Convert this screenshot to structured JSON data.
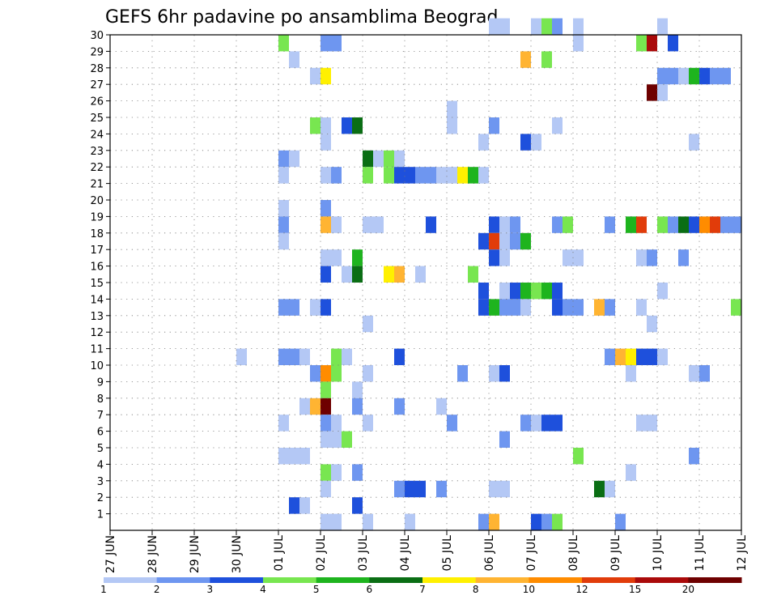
{
  "chart_data": {
    "type": "heatmap",
    "title": "GEFS 6hr padavine po ansamblima Beograd",
    "xlabel": "",
    "ylabel": "",
    "x_ticks": [
      "27 JUN",
      "28 JUN",
      "29 JUN",
      "30 JUN",
      "01 JUL",
      "02 JUL",
      "03 JUL",
      "04 JUL",
      "05 JUL",
      "06 JUL",
      "07 JUL",
      "08 JUL",
      "09 JUL",
      "10 JUL",
      "11 JUL",
      "12 JUL"
    ],
    "y_ticks": [
      1,
      2,
      3,
      4,
      5,
      6,
      7,
      8,
      9,
      10,
      11,
      12,
      13,
      14,
      15,
      16,
      17,
      18,
      19,
      20,
      21,
      22,
      23,
      24,
      25,
      26,
      27,
      28,
      29,
      30
    ],
    "x_range_days": [
      0,
      15
    ],
    "y_range": [
      0,
      30
    ],
    "time_step_hours": 6,
    "grid": true,
    "legend_position": "bottom",
    "color_levels": [
      1,
      2,
      3,
      4,
      5,
      6,
      7,
      8,
      10,
      12,
      15,
      20
    ],
    "colors": [
      "#b4c8f5",
      "#6e96f0",
      "#1e50dc",
      "#78e650",
      "#1eb41e",
      "#0a6e14",
      "#fff000",
      "#ffb432",
      "#ff8c00",
      "#e13c0a",
      "#aa0a0a",
      "#6e0000"
    ],
    "cells": [
      {
        "m": 30,
        "t": "06 JUL 00",
        "c": 1
      },
      {
        "m": 30,
        "t": "06 JUL 06",
        "c": 1
      },
      {
        "m": 30,
        "t": "07 JUL 00",
        "c": 1
      },
      {
        "m": 30,
        "t": "07 JUL 06",
        "c": 4
      },
      {
        "m": 30,
        "t": "07 JUL 12",
        "c": 2
      },
      {
        "m": 30,
        "t": "08 JUL 00",
        "c": 1
      },
      {
        "m": 30,
        "t": "10 JUL 00",
        "c": 1
      },
      {
        "m": 29,
        "t": "01 JUL 00",
        "c": 4
      },
      {
        "m": 29,
        "t": "02 JUL 00",
        "c": 2
      },
      {
        "m": 29,
        "t": "02 JUL 06",
        "c": 2
      },
      {
        "m": 29,
        "t": "08 JUL 00",
        "c": 1
      },
      {
        "m": 29,
        "t": "09 JUL 12",
        "c": 4
      },
      {
        "m": 29,
        "t": "09 JUL 18",
        "c": 11
      },
      {
        "m": 29,
        "t": "10 JUL 06",
        "c": 3
      },
      {
        "m": 28,
        "t": "01 JUL 06",
        "c": 1
      },
      {
        "m": 28,
        "t": "06 JUL 18",
        "c": 8
      },
      {
        "m": 28,
        "t": "07 JUL 06",
        "c": 4
      },
      {
        "m": 27,
        "t": "01 JUL 18",
        "c": 1
      },
      {
        "m": 27,
        "t": "02 JUL 00",
        "c": 7
      },
      {
        "m": 27,
        "t": "10 JUL 00",
        "c": 2
      },
      {
        "m": 27,
        "t": "10 JUL 06",
        "c": 2
      },
      {
        "m": 27,
        "t": "10 JUL 12",
        "c": 1
      },
      {
        "m": 27,
        "t": "10 JUL 18",
        "c": 5
      },
      {
        "m": 27,
        "t": "11 JUL 00",
        "c": 3
      },
      {
        "m": 27,
        "t": "11 JUL 06",
        "c": 2
      },
      {
        "m": 27,
        "t": "11 JUL 12",
        "c": 2
      },
      {
        "m": 26,
        "t": "09 JUL 18",
        "c": 12
      },
      {
        "m": 26,
        "t": "10 JUL 00",
        "c": 1
      },
      {
        "m": 25,
        "t": "05 JUL 00",
        "c": 1
      },
      {
        "m": 24,
        "t": "01 JUL 18",
        "c": 4
      },
      {
        "m": 24,
        "t": "02 JUL 00",
        "c": 1
      },
      {
        "m": 24,
        "t": "02 JUL 12",
        "c": 3
      },
      {
        "m": 24,
        "t": "02 JUL 18",
        "c": 6
      },
      {
        "m": 24,
        "t": "05 JUL 00",
        "c": 1
      },
      {
        "m": 24,
        "t": "06 JUL 00",
        "c": 2
      },
      {
        "m": 24,
        "t": "07 JUL 12",
        "c": 1
      },
      {
        "m": 23,
        "t": "02 JUL 00",
        "c": 1
      },
      {
        "m": 23,
        "t": "05 JUL 18",
        "c": 1
      },
      {
        "m": 23,
        "t": "06 JUL 18",
        "c": 3
      },
      {
        "m": 23,
        "t": "07 JUL 00",
        "c": 1
      },
      {
        "m": 23,
        "t": "10 JUL 18",
        "c": 1
      },
      {
        "m": 22,
        "t": "01 JUL 00",
        "c": 2
      },
      {
        "m": 22,
        "t": "01 JUL 06",
        "c": 1
      },
      {
        "m": 22,
        "t": "03 JUL 00",
        "c": 6
      },
      {
        "m": 22,
        "t": "03 JUL 06",
        "c": 1
      },
      {
        "m": 22,
        "t": "03 JUL 12",
        "c": 4
      },
      {
        "m": 22,
        "t": "03 JUL 18",
        "c": 1
      },
      {
        "m": 21,
        "t": "01 JUL 00",
        "c": 1
      },
      {
        "m": 21,
        "t": "02 JUL 00",
        "c": 1
      },
      {
        "m": 21,
        "t": "02 JUL 06",
        "c": 2
      },
      {
        "m": 21,
        "t": "03 JUL 00",
        "c": 4
      },
      {
        "m": 21,
        "t": "03 JUL 12",
        "c": 4
      },
      {
        "m": 21,
        "t": "03 JUL 18",
        "c": 3
      },
      {
        "m": 21,
        "t": "04 JUL 00",
        "c": 3
      },
      {
        "m": 21,
        "t": "04 JUL 06",
        "c": 2
      },
      {
        "m": 21,
        "t": "04 JUL 12",
        "c": 2
      },
      {
        "m": 21,
        "t": "04 JUL 18",
        "c": 1
      },
      {
        "m": 21,
        "t": "05 JUL 00",
        "c": 1
      },
      {
        "m": 21,
        "t": "05 JUL 06",
        "c": 7
      },
      {
        "m": 21,
        "t": "05 JUL 12",
        "c": 5
      },
      {
        "m": 21,
        "t": "05 JUL 18",
        "c": 1
      },
      {
        "m": 21,
        "t": "12 JUL 00",
        "c": 1
      },
      {
        "m": 19,
        "t": "01 JUL 00",
        "c": 1
      },
      {
        "m": 19,
        "t": "02 JUL 00",
        "c": 2
      },
      {
        "m": 18,
        "t": "01 JUL 00",
        "c": 2
      },
      {
        "m": 18,
        "t": "02 JUL 00",
        "c": 8
      },
      {
        "m": 18,
        "t": "02 JUL 06",
        "c": 1
      },
      {
        "m": 18,
        "t": "03 JUL 00",
        "c": 1
      },
      {
        "m": 18,
        "t": "03 JUL 06",
        "c": 1
      },
      {
        "m": 18,
        "t": "04 JUL 12",
        "c": 3
      },
      {
        "m": 18,
        "t": "06 JUL 00",
        "c": 3
      },
      {
        "m": 18,
        "t": "06 JUL 06",
        "c": 1
      },
      {
        "m": 18,
        "t": "06 JUL 12",
        "c": 2
      },
      {
        "m": 18,
        "t": "07 JUL 12",
        "c": 2
      },
      {
        "m": 18,
        "t": "07 JUL 18",
        "c": 4
      },
      {
        "m": 18,
        "t": "08 JUL 18",
        "c": 2
      },
      {
        "m": 18,
        "t": "09 JUL 06",
        "c": 5
      },
      {
        "m": 18,
        "t": "09 JUL 12",
        "c": 10
      },
      {
        "m": 18,
        "t": "10 JUL 00",
        "c": 4
      },
      {
        "m": 18,
        "t": "10 JUL 06",
        "c": 2
      },
      {
        "m": 18,
        "t": "10 JUL 12",
        "c": 6
      },
      {
        "m": 18,
        "t": "10 JUL 18",
        "c": 3
      },
      {
        "m": 18,
        "t": "11 JUL 00",
        "c": 9
      },
      {
        "m": 18,
        "t": "11 JUL 06",
        "c": 10
      },
      {
        "m": 18,
        "t": "11 JUL 12",
        "c": 2
      },
      {
        "m": 18,
        "t": "11 JUL 18",
        "c": 2
      },
      {
        "m": 17,
        "t": "01 JUL 00",
        "c": 1
      },
      {
        "m": 17,
        "t": "05 JUL 18",
        "c": 3
      },
      {
        "m": 17,
        "t": "06 JUL 00",
        "c": 10
      },
      {
        "m": 17,
        "t": "06 JUL 06",
        "c": 1
      },
      {
        "m": 17,
        "t": "06 JUL 12",
        "c": 2
      },
      {
        "m": 17,
        "t": "06 JUL 18",
        "c": 5
      },
      {
        "m": 16,
        "t": "02 JUL 00",
        "c": 1
      },
      {
        "m": 16,
        "t": "02 JUL 06",
        "c": 1
      },
      {
        "m": 16,
        "t": "02 JUL 18",
        "c": 5
      },
      {
        "m": 16,
        "t": "06 JUL 00",
        "c": 3
      },
      {
        "m": 16,
        "t": "06 JUL 06",
        "c": 1
      },
      {
        "m": 16,
        "t": "07 JUL 18",
        "c": 1
      },
      {
        "m": 16,
        "t": "08 JUL 00",
        "c": 1
      },
      {
        "m": 16,
        "t": "09 JUL 12",
        "c": 1
      },
      {
        "m": 16,
        "t": "09 JUL 18",
        "c": 2
      },
      {
        "m": 16,
        "t": "10 JUL 12",
        "c": 2
      },
      {
        "m": 15,
        "t": "02 JUL 00",
        "c": 3
      },
      {
        "m": 15,
        "t": "02 JUL 12",
        "c": 1
      },
      {
        "m": 15,
        "t": "02 JUL 18",
        "c": 6
      },
      {
        "m": 15,
        "t": "03 JUL 12",
        "c": 7
      },
      {
        "m": 15,
        "t": "03 JUL 18",
        "c": 8
      },
      {
        "m": 15,
        "t": "04 JUL 06",
        "c": 1
      },
      {
        "m": 15,
        "t": "05 JUL 12",
        "c": 4
      },
      {
        "m": 14,
        "t": "05 JUL 18",
        "c": 3
      },
      {
        "m": 14,
        "t": "06 JUL 06",
        "c": 1
      },
      {
        "m": 14,
        "t": "06 JUL 12",
        "c": 3
      },
      {
        "m": 14,
        "t": "06 JUL 18",
        "c": 5
      },
      {
        "m": 14,
        "t": "07 JUL 00",
        "c": 4
      },
      {
        "m": 14,
        "t": "07 JUL 06",
        "c": 5
      },
      {
        "m": 14,
        "t": "07 JUL 12",
        "c": 3
      },
      {
        "m": 14,
        "t": "10 JUL 00",
        "c": 1
      },
      {
        "m": 13,
        "t": "01 JUL 00",
        "c": 2
      },
      {
        "m": 13,
        "t": "01 JUL 06",
        "c": 2
      },
      {
        "m": 13,
        "t": "01 JUL 18",
        "c": 1
      },
      {
        "m": 13,
        "t": "02 JUL 00",
        "c": 3
      },
      {
        "m": 13,
        "t": "05 JUL 18",
        "c": 3
      },
      {
        "m": 13,
        "t": "06 JUL 00",
        "c": 5
      },
      {
        "m": 13,
        "t": "06 JUL 06",
        "c": 2
      },
      {
        "m": 13,
        "t": "06 JUL 12",
        "c": 2
      },
      {
        "m": 13,
        "t": "06 JUL 18",
        "c": 1
      },
      {
        "m": 13,
        "t": "07 JUL 12",
        "c": 3
      },
      {
        "m": 13,
        "t": "07 JUL 18",
        "c": 2
      },
      {
        "m": 13,
        "t": "08 JUL 00",
        "c": 2
      },
      {
        "m": 13,
        "t": "08 JUL 12",
        "c": 8
      },
      {
        "m": 13,
        "t": "08 JUL 18",
        "c": 2
      },
      {
        "m": 13,
        "t": "09 JUL 12",
        "c": 1
      },
      {
        "m": 13,
        "t": "11 JUL 18",
        "c": 4
      },
      {
        "m": 13,
        "t": "12 JUL 00",
        "c": 1
      },
      {
        "m": 12,
        "t": "03 JUL 00",
        "c": 1
      },
      {
        "m": 12,
        "t": "09 JUL 18",
        "c": 1
      },
      {
        "m": 11,
        "t": "00",
        "c": 1
      },
      {
        "m": 10,
        "t": "30 JUN 00",
        "c": 1
      },
      {
        "m": 10,
        "t": "01 JUL 00",
        "c": 2
      },
      {
        "m": 10,
        "t": "01 JUL 06",
        "c": 2
      },
      {
        "m": 10,
        "t": "01 JUL 12",
        "c": 1
      },
      {
        "m": 10,
        "t": "02 JUL 06",
        "c": 4
      },
      {
        "m": 10,
        "t": "02 JUL 12",
        "c": 1
      },
      {
        "m": 10,
        "t": "03 JUL 18",
        "c": 3
      },
      {
        "m": 10,
        "t": "08 JUL 18",
        "c": 2
      },
      {
        "m": 10,
        "t": "09 JUL 00",
        "c": 8
      },
      {
        "m": 10,
        "t": "09 JUL 06",
        "c": 7
      },
      {
        "m": 10,
        "t": "09 JUL 12",
        "c": 3
      },
      {
        "m": 10,
        "t": "09 JUL 18",
        "c": 3
      },
      {
        "m": 10,
        "t": "10 JUL 00",
        "c": 1
      },
      {
        "m": 10,
        "t": "12 JUL 00",
        "c": 1
      },
      {
        "m": 9,
        "t": "01 JUL 18",
        "c": 2
      },
      {
        "m": 9,
        "t": "02 JUL 00",
        "c": 9
      },
      {
        "m": 9,
        "t": "02 JUL 06",
        "c": 4
      },
      {
        "m": 9,
        "t": "03 JUL 00",
        "c": 1
      },
      {
        "m": 9,
        "t": "05 JUL 06",
        "c": 2
      },
      {
        "m": 9,
        "t": "06 JUL 00",
        "c": 1
      },
      {
        "m": 9,
        "t": "06 JUL 06",
        "c": 3
      },
      {
        "m": 9,
        "t": "09 JUL 06",
        "c": 1
      },
      {
        "m": 9,
        "t": "10 JUL 18",
        "c": 1
      },
      {
        "m": 9,
        "t": "11 JUL 00",
        "c": 2
      },
      {
        "m": 8,
        "t": "02 JUL 00",
        "c": 4
      },
      {
        "m": 8,
        "t": "02 JUL 18",
        "c": 1
      },
      {
        "m": 7,
        "t": "01 JUL 12",
        "c": 1
      },
      {
        "m": 7,
        "t": "01 JUL 18",
        "c": 8
      },
      {
        "m": 7,
        "t": "02 JUL 00",
        "c": 12
      },
      {
        "m": 7,
        "t": "02 JUL 18",
        "c": 2
      },
      {
        "m": 7,
        "t": "03 JUL 18",
        "c": 2
      },
      {
        "m": 7,
        "t": "04 JUL 18",
        "c": 1
      },
      {
        "m": 6,
        "t": "01 JUL 00",
        "c": 1
      },
      {
        "m": 6,
        "t": "02 JUL 00",
        "c": 2
      },
      {
        "m": 6,
        "t": "02 JUL 06",
        "c": 1
      },
      {
        "m": 6,
        "t": "03 JUL 00",
        "c": 1
      },
      {
        "m": 6,
        "t": "05 JUL 00",
        "c": 2
      },
      {
        "m": 6,
        "t": "06 JUL 18",
        "c": 2
      },
      {
        "m": 6,
        "t": "07 JUL 00",
        "c": 1
      },
      {
        "m": 6,
        "t": "07 JUL 06",
        "c": 3
      },
      {
        "m": 6,
        "t": "07 JUL 12",
        "c": 3
      },
      {
        "m": 6,
        "t": "09 JUL 12",
        "c": 1
      },
      {
        "m": 6,
        "t": "09 JUL 18",
        "c": 1
      },
      {
        "m": 5,
        "t": "02 JUL 00",
        "c": 1
      },
      {
        "m": 5,
        "t": "02 JUL 06",
        "c": 1
      },
      {
        "m": 5,
        "t": "02 JUL 12",
        "c": 4
      },
      {
        "m": 5,
        "t": "06 JUL 06",
        "c": 2
      },
      {
        "m": 4,
        "t": "01 JUL 00",
        "c": 1
      },
      {
        "m": 4,
        "t": "01 JUL 06",
        "c": 1
      },
      {
        "m": 4,
        "t": "01 JUL 12",
        "c": 1
      },
      {
        "m": 4,
        "t": "08 JUL 00",
        "c": 4
      },
      {
        "m": 4,
        "t": "10 JUL 18",
        "c": 2
      },
      {
        "m": 3,
        "t": "02 JUL 00",
        "c": 4
      },
      {
        "m": 3,
        "t": "02 JUL 06",
        "c": 1
      },
      {
        "m": 3,
        "t": "02 JUL 18",
        "c": 2
      },
      {
        "m": 3,
        "t": "09 JUL 06",
        "c": 1
      },
      {
        "m": 2,
        "t": "02 JUL 00",
        "c": 1
      },
      {
        "m": 2,
        "t": "03 JUL 18",
        "c": 2
      },
      {
        "m": 2,
        "t": "04 JUL 00",
        "c": 3
      },
      {
        "m": 2,
        "t": "04 JUL 06",
        "c": 3
      },
      {
        "m": 2,
        "t": "04 JUL 18",
        "c": 2
      },
      {
        "m": 2,
        "t": "06 JUL 00",
        "c": 1
      },
      {
        "m": 2,
        "t": "06 JUL 06",
        "c": 1
      },
      {
        "m": 2,
        "t": "08 JUL 12",
        "c": 6
      },
      {
        "m": 2,
        "t": "08 JUL 18",
        "c": 1
      },
      {
        "m": 1,
        "t": "01 JUL 06",
        "c": 3
      },
      {
        "m": 1,
        "t": "01 JUL 12",
        "c": 1
      },
      {
        "m": 1,
        "t": "02 JUL 18",
        "c": 3
      },
      {
        "m": 0,
        "t": "02 JUL 00",
        "c": 1
      },
      {
        "m": 0,
        "t": "02 JUL 06",
        "c": 1
      },
      {
        "m": 0,
        "t": "03 JUL 00",
        "c": 1
      },
      {
        "m": 0,
        "t": "04 JUL 00",
        "c": 1
      },
      {
        "m": 0,
        "t": "05 JUL 18",
        "c": 2
      },
      {
        "m": 0,
        "t": "06 JUL 00",
        "c": 8
      },
      {
        "m": 0,
        "t": "07 JUL 00",
        "c": 3
      },
      {
        "m": 0,
        "t": "07 JUL 06",
        "c": 2
      },
      {
        "m": 0,
        "t": "07 JUL 12",
        "c": 4
      },
      {
        "m": 0,
        "t": "09 JUL 00",
        "c": 2
      }
    ]
  }
}
